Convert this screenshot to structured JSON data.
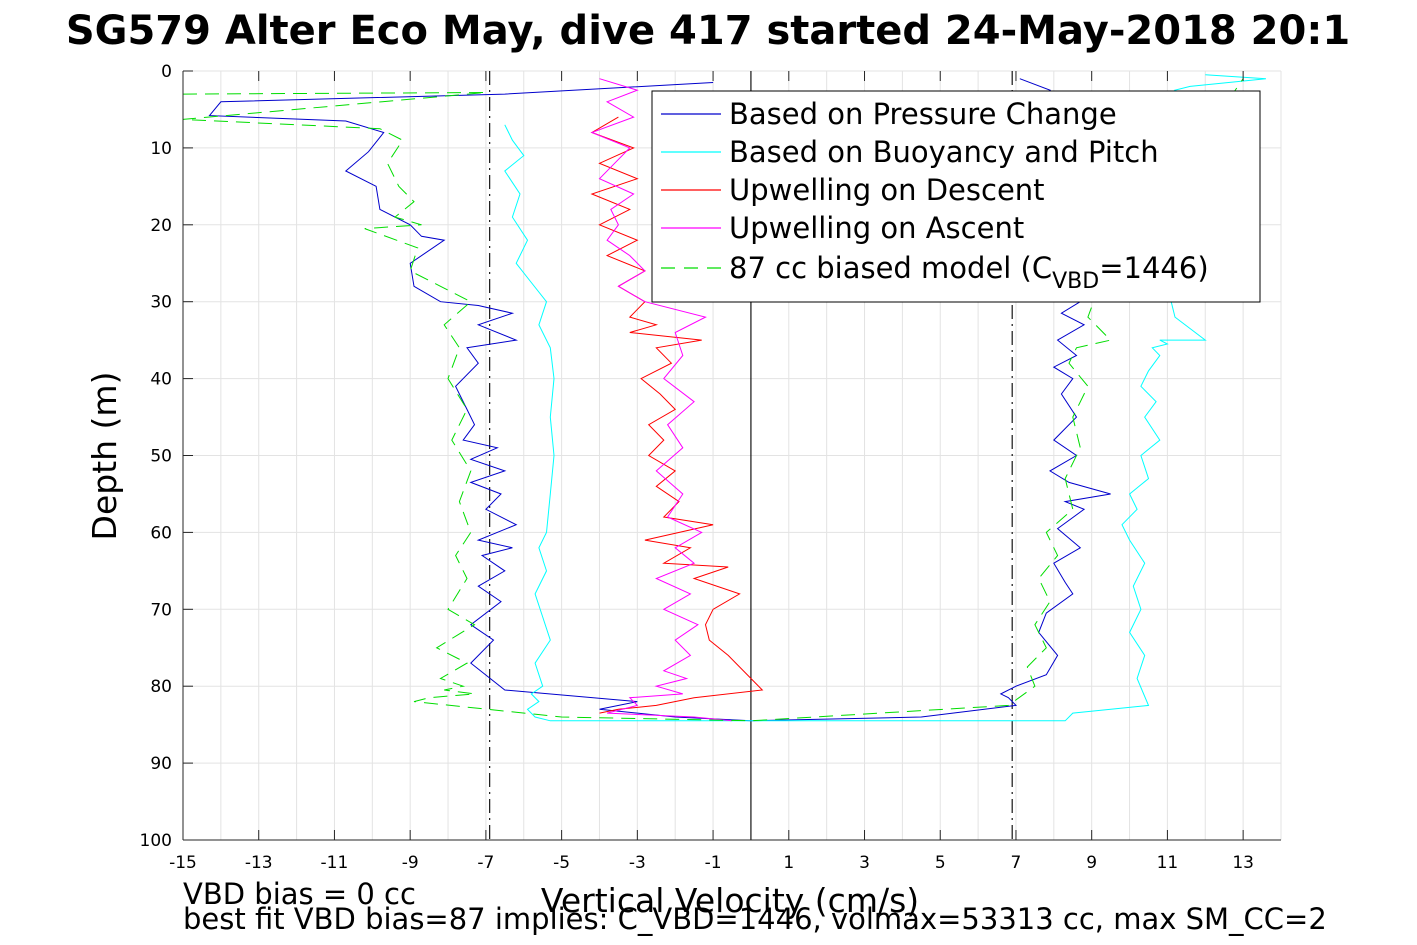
{
  "chart_data": {
    "type": "line",
    "title": "SG579 Alter Eco May, dive 417 started 24-May-2018 20:1",
    "xlabel": "Vertical Velocity (cm/s)",
    "ylabel": "Depth (m)",
    "xlim": [
      -15,
      14
    ],
    "ylim": [
      0,
      100
    ],
    "y_reversed": true,
    "grid": true,
    "x_ticks": [
      -15,
      -13,
      -11,
      -9,
      -7,
      -5,
      -3,
      -1,
      1,
      3,
      5,
      7,
      9,
      11,
      13
    ],
    "y_ticks": [
      0,
      10,
      20,
      30,
      40,
      50,
      60,
      70,
      80,
      90,
      100
    ],
    "reference_lines": [
      {
        "x": -6.9,
        "style": "dashdot",
        "color": "#000000"
      },
      {
        "x": 0,
        "style": "solid",
        "color": "#000000"
      },
      {
        "x": 6.9,
        "style": "dashdot",
        "color": "#000000"
      }
    ],
    "legend_position": "top-right",
    "series": [
      {
        "name": "Based on Pressure Change",
        "color": "#0000cc",
        "style": "solid",
        "x": [
          -1.0,
          -6.5,
          -14.0,
          -14.3,
          -10.7,
          -9.7,
          -10.1,
          -10.7,
          -9.9,
          -9.8,
          -9.0,
          -8.7,
          -8.1,
          -9.0,
          -8.9,
          -8.2,
          -7.2,
          -6.3,
          -7.2,
          -6.2,
          -7.5,
          -7.2,
          -7.8,
          -7.5,
          -7.3,
          -7.6,
          -6.7,
          -7.4,
          -6.5,
          -7.4,
          -6.6,
          -7.0,
          -6.2,
          -7.2,
          -6.3,
          -7.1,
          -6.5,
          -7.2,
          -6.6,
          -7.4,
          -6.8,
          -7.4,
          -6.5,
          -3.0,
          -4.0,
          -2.0,
          0.0,
          4.5,
          7.0,
          6.8,
          6.6,
          7.0,
          7.8,
          8.1,
          7.6,
          7.8,
          8.5,
          8.3,
          8.0,
          8.7,
          8.1,
          8.8,
          8.3,
          9.5,
          8.4,
          7.9,
          8.6,
          8.0,
          8.6,
          8.2,
          8.5,
          8.0,
          8.6,
          8.1,
          8.8,
          8.2,
          8.7,
          8.3,
          8.6,
          8.2,
          8.7,
          8.5,
          7.6,
          7.7,
          8.0,
          7.6,
          7.9,
          7.7,
          7.5,
          7.9,
          7.1
        ],
        "y": [
          1.5,
          3.0,
          4.0,
          5.8,
          6.5,
          8.0,
          10.5,
          13.0,
          15.0,
          18.0,
          20.0,
          21.5,
          22.0,
          25.0,
          28.0,
          30.0,
          30.5,
          31.5,
          33.0,
          35.0,
          36.0,
          38.0,
          41.0,
          44.0,
          46.0,
          48.0,
          49.0,
          50.5,
          52.0,
          53.5,
          55.0,
          57.0,
          59.0,
          61.0,
          62.0,
          63.0,
          65.0,
          67.0,
          69.0,
          72.0,
          74.0,
          77.0,
          80.5,
          82.0,
          83.0,
          84.0,
          84.5,
          84.0,
          82.5,
          81.5,
          81.0,
          80.0,
          78.5,
          76.0,
          73.0,
          70.5,
          68.0,
          66.5,
          64.0,
          62.0,
          59.5,
          57.0,
          56.0,
          55.0,
          53.5,
          52.0,
          50.0,
          48.0,
          45.0,
          42.0,
          40.0,
          38.5,
          37.0,
          35.0,
          33.0,
          31.5,
          30.0,
          28.0,
          26.0,
          24.0,
          22.0,
          20.0,
          18.0,
          16.0,
          13.5,
          11.0,
          8.5,
          6.5,
          4.0,
          2.5,
          1.0
        ]
      },
      {
        "name": "Based on Buoyancy and Pitch",
        "color": "#00ffff",
        "style": "solid",
        "x": [
          -6.5,
          -6.3,
          -6.0,
          -6.5,
          -6.1,
          -6.3,
          -5.9,
          -6.2,
          -5.8,
          -5.4,
          -5.6,
          -5.3,
          -5.2,
          -5.3,
          -5.2,
          -5.3,
          -5.4,
          -5.6,
          -5.4,
          -5.7,
          -5.5,
          -5.3,
          -5.7,
          -5.5,
          -5.8,
          -5.6,
          -5.9,
          -5.7,
          -5.3,
          -0.5,
          3.0,
          8.3,
          8.5,
          10.5,
          10.2,
          10.4,
          10.0,
          10.3,
          10.1,
          10.4,
          10.0,
          9.8,
          10.2,
          10.0,
          10.5,
          10.3,
          10.8,
          10.4,
          10.7,
          10.3,
          10.5,
          10.8,
          10.6,
          11.0,
          10.8,
          12.0,
          11.2,
          11.1,
          11.2,
          10.9,
          11.3,
          11.0,
          11.4,
          11.1,
          11.4,
          11.2,
          11.0,
          11.3,
          11.6,
          11.2,
          11.6,
          13.6,
          12.0
        ],
        "y": [
          7.0,
          9.0,
          11.0,
          13.0,
          16.0,
          19.0,
          22.0,
          25.0,
          27.5,
          30.0,
          33.0,
          36.0,
          40.0,
          45.0,
          50.0,
          55.0,
          60.0,
          62.0,
          65.0,
          68.0,
          71.0,
          74.0,
          77.0,
          80.0,
          81.0,
          82.0,
          83.0,
          84.0,
          84.5,
          84.5,
          84.5,
          84.5,
          83.5,
          82.5,
          79.0,
          76.0,
          73.0,
          70.0,
          67.0,
          64.0,
          61.0,
          59.0,
          57.0,
          55.0,
          53.0,
          50.0,
          48.0,
          45.0,
          43.0,
          41.0,
          39.0,
          37.0,
          36.0,
          35.5,
          35.0,
          35.0,
          32.0,
          30.0,
          28.0,
          26.0,
          24.0,
          21.0,
          18.0,
          15.0,
          12.0,
          9.0,
          7.0,
          5.0,
          3.5,
          2.5,
          2.0,
          1.0,
          0.5
        ]
      },
      {
        "name": "Upwelling on Descent",
        "color": "#ff0000",
        "style": "solid",
        "x": [
          -3.5,
          -4.2,
          -3.1,
          -4.0,
          -3.0,
          -4.2,
          -3.2,
          -4.0,
          -3.0,
          -3.8,
          -2.8,
          -3.5,
          -2.8,
          -3.2,
          -2.5,
          -3.2,
          -1.3,
          -2.5,
          -2.1,
          -2.9,
          -2.4,
          -2.0,
          -2.7,
          -2.3,
          -2.7,
          -2.0,
          -2.5,
          -1.9,
          -2.3,
          -1.0,
          -2.8,
          -1.6,
          -2.3,
          -0.6,
          -1.5,
          -0.3,
          -1.0,
          -1.2,
          -1.1,
          -0.6,
          0.3,
          -1.5,
          -2.5,
          -3.5,
          -4.0
        ],
        "y": [
          6.0,
          8.0,
          10.0,
          12.0,
          14.0,
          16.0,
          18.0,
          20.0,
          22.0,
          24.0,
          26.0,
          28.0,
          30.0,
          32.0,
          33.0,
          34.0,
          35.0,
          36.0,
          38.0,
          40.0,
          42.0,
          44.0,
          46.0,
          48.0,
          50.0,
          52.0,
          54.0,
          56.0,
          58.0,
          59.0,
          61.0,
          62.0,
          64.0,
          64.5,
          66.0,
          68.0,
          70.0,
          72.0,
          74.0,
          76.0,
          80.5,
          81.5,
          82.5,
          83.0,
          83.5
        ]
      },
      {
        "name": "Upwelling on Ascent",
        "color": "#ff00ff",
        "style": "solid",
        "x": [
          -4.0,
          -3.0,
          -3.8,
          -3.1,
          -4.2,
          -3.2,
          -3.6,
          -4.0,
          -3.1,
          -3.7,
          -3.5,
          -3.8,
          -3.2,
          -2.8,
          -3.5,
          -2.8,
          -1.2,
          -2.0,
          -1.8,
          -2.3,
          -1.5,
          -2.2,
          -1.8,
          -2.5,
          -1.8,
          -2.2,
          -1.3,
          -2.0,
          -1.5,
          -2.5,
          -1.6,
          -2.3,
          -1.4,
          -2.0,
          -1.6,
          -2.3,
          -1.7,
          -2.5,
          -1.8,
          -3.2,
          -3.0,
          -3.8,
          -1.5,
          -0.5
        ],
        "y": [
          1.0,
          2.5,
          4.0,
          6.0,
          8.0,
          10.0,
          12.0,
          14.0,
          16.0,
          18.0,
          20.0,
          22.0,
          24.0,
          26.0,
          28.0,
          30.0,
          32.0,
          34.0,
          37.0,
          40.0,
          43.0,
          46.0,
          49.0,
          52.0,
          55.0,
          58.0,
          60.0,
          62.0,
          64.0,
          66.0,
          68.0,
          70.0,
          72.0,
          74.0,
          76.0,
          78.0,
          79.0,
          80.0,
          81.0,
          81.5,
          82.5,
          83.5,
          84.0,
          84.5
        ]
      },
      {
        "name": "87 cc biased model (C_VBD=1446)",
        "color": "#00dd00",
        "style": "dashed",
        "x": [
          -15.0,
          -7.0,
          -15.0,
          -9.8,
          -9.2,
          -9.6,
          -9.3,
          -8.9,
          -9.4,
          -8.7,
          -10.2,
          -8.8,
          -9.0,
          -8.2,
          -7.4,
          -8.1,
          -7.7,
          -8.0,
          -7.5,
          -7.9,
          -7.4,
          -7.7,
          -7.4,
          -7.8,
          -7.5,
          -8.0,
          -7.3,
          -8.3,
          -7.5,
          -8.2,
          -7.6,
          -8.1,
          -7.3,
          -8.5,
          -8.9,
          -5.0,
          0.0,
          6.8,
          7.5,
          7.3,
          7.8,
          7.5,
          7.9,
          7.6,
          8.1,
          7.8,
          8.5,
          8.3,
          8.7,
          8.5,
          8.9,
          8.4,
          8.6,
          9.5,
          8.9,
          9.2,
          9.8,
          13.0
        ],
        "y": [
          3.0,
          2.8,
          6.3,
          7.5,
          9.0,
          12.0,
          15.0,
          17.0,
          19.0,
          20.0,
          20.5,
          23.0,
          26.0,
          28.0,
          30.0,
          33.0,
          36.0,
          40.0,
          44.0,
          48.0,
          52.0,
          56.0,
          60.0,
          63.0,
          66.0,
          70.0,
          72.0,
          75.0,
          77.0,
          79.0,
          80.0,
          80.5,
          81.0,
          81.5,
          82.0,
          84.0,
          84.5,
          82.5,
          80.0,
          77.5,
          75.0,
          72.0,
          69.0,
          66.0,
          63.0,
          60.0,
          57.0,
          53.0,
          49.0,
          45.0,
          41.0,
          38.0,
          36.0,
          35.0,
          32.0,
          28.0,
          24.0,
          1.0
        ]
      }
    ],
    "annotations": [
      "VBD bias = 0 cc",
      "best fit VBD bias=87 implies: C_VBD=1446, volmax=53313 cc, max SM_CC=2"
    ]
  },
  "legend": {
    "items": [
      {
        "label": "Based on Pressure Change",
        "color": "#0000cc",
        "dash": ""
      },
      {
        "label": "Based on Buoyancy and Pitch",
        "color": "#00ffff",
        "dash": ""
      },
      {
        "label": "Upwelling on Descent",
        "color": "#ff0000",
        "dash": ""
      },
      {
        "label": "Upwelling on Ascent",
        "color": "#ff00ff",
        "dash": ""
      }
    ],
    "model_label_prefix": "87 cc biased model (C",
    "model_label_sub": "VBD",
    "model_label_suffix": "=1446)",
    "model_color": "#00dd00"
  },
  "footer": {
    "line1": "VBD bias = 0 cc",
    "line2": "best fit VBD bias=87 implies: C_VBD=1446, volmax=53313 cc, max SM_CC=2"
  }
}
